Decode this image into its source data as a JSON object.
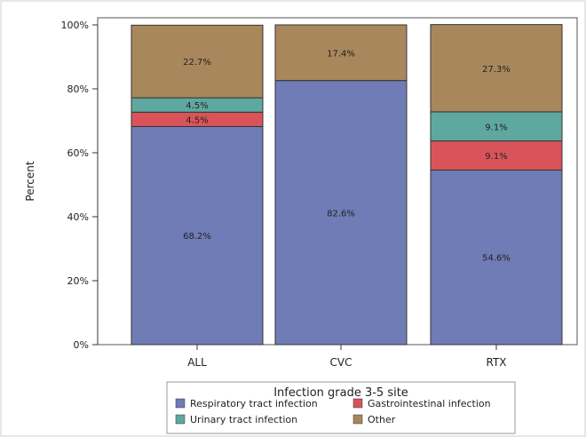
{
  "chart_data": {
    "type": "bar",
    "stacked": true,
    "categories": [
      "ALL",
      "CVC",
      "RTX"
    ],
    "series": [
      {
        "name": "Respiratory tract infection",
        "color": "#6f7cb5",
        "values": [
          68.2,
          82.6,
          54.6
        ]
      },
      {
        "name": "Gastrointestinal infection",
        "color": "#d9545a",
        "values": [
          4.5,
          0,
          9.1
        ]
      },
      {
        "name": "Urinary tract infection",
        "color": "#5ea89f",
        "values": [
          4.5,
          0,
          9.1
        ]
      },
      {
        "name": "Other",
        "color": "#a9875c",
        "values": [
          22.7,
          17.4,
          27.3
        ]
      }
    ],
    "data_labels": [
      [
        "68.2%",
        "",
        "",
        "22.7%"
      ],
      [
        "82.6%",
        "",
        "",
        "17.4%"
      ],
      [
        "54.6%",
        "9.1%",
        "9.1%",
        "27.3%"
      ]
    ],
    "small_labels": [
      "4.5%",
      "4.5%"
    ],
    "ylabel": "Percent",
    "ylim": [
      0,
      100
    ],
    "yticks": [
      "0%",
      "20%",
      "40%",
      "60%",
      "80%",
      "100%"
    ],
    "legend": {
      "title": "Infection grade 3-5 site",
      "position": "bottom"
    },
    "grid": false
  }
}
